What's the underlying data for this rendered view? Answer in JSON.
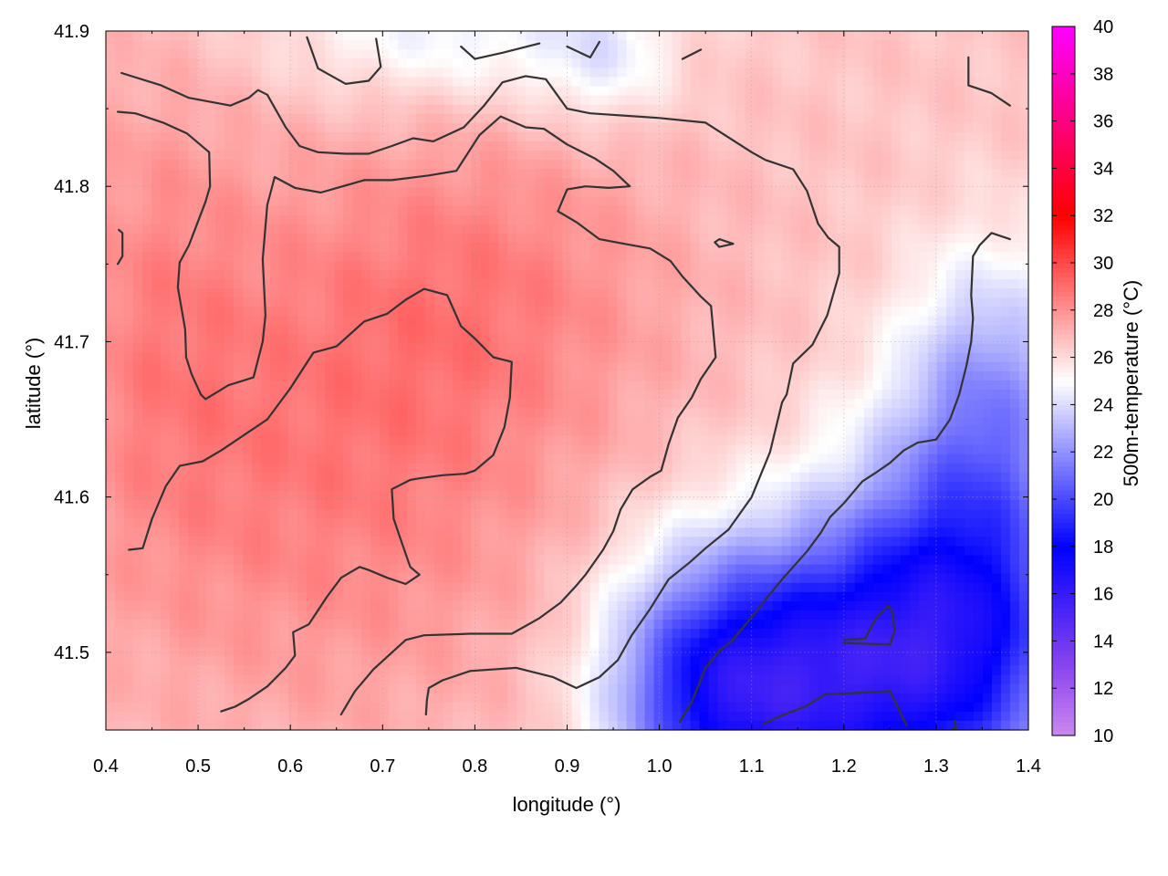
{
  "chart_data": {
    "type": "heatmap",
    "xlabel": "longitude (°)",
    "ylabel": "latitude (°)",
    "colorbar_label": "500m-temperature (°C)",
    "xlim": [
      0.4,
      1.4
    ],
    "ylim": [
      41.45,
      41.9
    ],
    "x_ticks": [
      "0.4",
      "0.5",
      "0.6",
      "0.7",
      "0.8",
      "0.9",
      "1.0",
      "1.1",
      "1.2",
      "1.3",
      "1.4"
    ],
    "x_tick_values": [
      0.4,
      0.5,
      0.6,
      0.7,
      0.8,
      0.9,
      1.0,
      1.1,
      1.2,
      1.3,
      1.4
    ],
    "y_ticks": [
      "41.5",
      "41.6",
      "41.7",
      "41.8",
      "41.9"
    ],
    "y_tick_values": [
      41.5,
      41.6,
      41.7,
      41.8,
      41.9
    ],
    "colorbar_range": [
      10,
      40
    ],
    "colorbar_ticks": [
      "10",
      "12",
      "14",
      "16",
      "18",
      "20",
      "22",
      "24",
      "26",
      "28",
      "30",
      "32",
      "34",
      "36",
      "38",
      "40"
    ],
    "colorbar_tick_values": [
      10,
      12,
      14,
      16,
      18,
      20,
      22,
      24,
      26,
      28,
      30,
      32,
      34,
      36,
      38,
      40
    ],
    "colormap": [
      {
        "v": 10,
        "color": "#cc88ee"
      },
      {
        "v": 13,
        "color": "#8844ee"
      },
      {
        "v": 18,
        "color": "#0000ff"
      },
      {
        "v": 25,
        "color": "#ffffff"
      },
      {
        "v": 32,
        "color": "#ff0000"
      },
      {
        "v": 40,
        "color": "#ff00ff"
      }
    ],
    "grid": true,
    "temperature_field": {
      "base_celsius": 26.6,
      "blobs": [
        {
          "lon": 0.65,
          "lat": 41.62,
          "sigma_lon": 0.18,
          "sigma_lat": 0.12,
          "amp_celsius": 1.9
        },
        {
          "lon": 0.82,
          "lat": 41.74,
          "sigma_lon": 0.15,
          "sigma_lat": 0.08,
          "amp_celsius": 1.4
        },
        {
          "lon": 0.45,
          "lat": 41.72,
          "sigma_lon": 0.08,
          "sigma_lat": 0.12,
          "amp_celsius": 1.2
        },
        {
          "lon": 1.24,
          "lat": 41.49,
          "sigma_lon": 0.13,
          "sigma_lat": 0.07,
          "amp_celsius": -7.5
        },
        {
          "lon": 1.34,
          "lat": 41.56,
          "sigma_lon": 0.09,
          "sigma_lat": 0.09,
          "amp_celsius": -5.0
        },
        {
          "lon": 1.1,
          "lat": 41.47,
          "sigma_lon": 0.09,
          "sigma_lat": 0.06,
          "amp_celsius": -4.8
        },
        {
          "lon": 1.36,
          "lat": 41.68,
          "sigma_lon": 0.06,
          "sigma_lat": 0.06,
          "amp_celsius": -2.6
        },
        {
          "lon": 0.78,
          "lat": 41.9,
          "sigma_lon": 0.14,
          "sigma_lat": 0.035,
          "amp_celsius": -2.2
        },
        {
          "lon": 0.94,
          "lat": 41.88,
          "sigma_lon": 0.05,
          "sigma_lat": 0.03,
          "amp_celsius": -1.6
        },
        {
          "lon": 1.03,
          "lat": 41.48,
          "sigma_lon": 0.07,
          "sigma_lat": 0.06,
          "amp_celsius": -3.0
        }
      ]
    },
    "contours": [
      [
        [
          0.417,
          41.873
        ],
        [
          0.46,
          41.865
        ],
        [
          0.49,
          41.857
        ],
        [
          0.535,
          41.852
        ],
        [
          0.555,
          41.857
        ],
        [
          0.565,
          41.862
        ],
        [
          0.575,
          41.859
        ],
        [
          0.595,
          41.838
        ],
        [
          0.61,
          41.826
        ],
        [
          0.63,
          41.822
        ],
        [
          0.66,
          41.821
        ],
        [
          0.685,
          41.821
        ],
        [
          0.71,
          41.826
        ],
        [
          0.733,
          41.831
        ],
        [
          0.755,
          41.829
        ],
        [
          0.788,
          41.838
        ],
        [
          0.81,
          41.852
        ],
        [
          0.83,
          41.867
        ],
        [
          0.855,
          41.871
        ],
        [
          0.877,
          41.869
        ],
        [
          0.9,
          41.85
        ],
        [
          0.925,
          41.847
        ],
        [
          1.0,
          41.844
        ],
        [
          1.05,
          41.841
        ],
        [
          1.1,
          41.822
        ],
        [
          1.115,
          41.817
        ],
        [
          1.145,
          41.811
        ],
        [
          1.16,
          41.797
        ],
        [
          1.172,
          41.776
        ],
        [
          1.183,
          41.767
        ],
        [
          1.195,
          41.761
        ],
        [
          1.195,
          41.744
        ],
        [
          1.182,
          41.717
        ],
        [
          1.166,
          41.698
        ],
        [
          1.145,
          41.686
        ],
        [
          1.138,
          41.666
        ],
        [
          1.133,
          41.661
        ],
        [
          1.12,
          41.629
        ],
        [
          1.1,
          41.6
        ],
        [
          1.075,
          41.579
        ],
        [
          1.05,
          41.567
        ],
        [
          1.033,
          41.558
        ],
        [
          1.01,
          41.547
        ],
        [
          0.99,
          41.528
        ],
        [
          0.97,
          41.511
        ],
        [
          0.955,
          41.495
        ],
        [
          0.935,
          41.484
        ],
        [
          0.91,
          41.477
        ],
        [
          0.885,
          41.484
        ],
        [
          0.845,
          41.49
        ],
        [
          0.795,
          41.488
        ],
        [
          0.765,
          41.482
        ],
        [
          0.75,
          41.477
        ],
        [
          0.748,
          41.469
        ],
        [
          0.747,
          41.46
        ]
      ],
      [
        [
          0.413,
          41.848
        ],
        [
          0.432,
          41.847
        ],
        [
          0.462,
          41.841
        ],
        [
          0.488,
          41.834
        ],
        [
          0.512,
          41.822
        ],
        [
          0.513,
          41.8
        ],
        [
          0.508,
          41.79
        ],
        [
          0.49,
          41.762
        ],
        [
          0.48,
          41.751
        ],
        [
          0.478,
          41.735
        ],
        [
          0.486,
          41.708
        ],
        [
          0.487,
          41.69
        ],
        [
          0.493,
          41.679
        ],
        [
          0.503,
          41.666
        ],
        [
          0.508,
          41.663
        ],
        [
          0.533,
          41.672
        ],
        [
          0.56,
          41.677
        ],
        [
          0.57,
          41.7
        ],
        [
          0.573,
          41.717
        ],
        [
          0.57,
          41.753
        ],
        [
          0.575,
          41.788
        ],
        [
          0.583,
          41.806
        ],
        [
          0.605,
          41.799
        ],
        [
          0.633,
          41.796
        ],
        [
          0.68,
          41.804
        ],
        [
          0.71,
          41.804
        ],
        [
          0.75,
          41.807
        ],
        [
          0.78,
          41.81
        ],
        [
          0.805,
          41.833
        ],
        [
          0.828,
          41.845
        ],
        [
          0.855,
          41.838
        ],
        [
          0.875,
          41.837
        ],
        [
          0.9,
          41.827
        ],
        [
          0.93,
          41.818
        ],
        [
          0.95,
          41.81
        ],
        [
          0.968,
          41.8
        ],
        [
          0.945,
          41.799
        ],
        [
          0.92,
          41.8
        ],
        [
          0.9,
          41.798
        ],
        [
          0.89,
          41.784
        ],
        [
          0.91,
          41.777
        ],
        [
          0.935,
          41.766
        ],
        [
          0.962,
          41.763
        ],
        [
          0.99,
          41.76
        ],
        [
          1.012,
          41.752
        ],
        [
          1.025,
          41.742
        ],
        [
          1.045,
          41.729
        ],
        [
          1.056,
          41.723
        ],
        [
          1.061,
          41.69
        ],
        [
          1.045,
          41.676
        ],
        [
          1.035,
          41.664
        ],
        [
          1.02,
          41.651
        ],
        [
          1.01,
          41.634
        ],
        [
          1.002,
          41.617
        ],
        [
          0.99,
          41.613
        ],
        [
          0.971,
          41.605
        ],
        [
          0.958,
          41.592
        ],
        [
          0.95,
          41.578
        ],
        [
          0.939,
          41.566
        ],
        [
          0.92,
          41.55
        ],
        [
          0.91,
          41.543
        ],
        [
          0.893,
          41.532
        ],
        [
          0.87,
          41.522
        ],
        [
          0.84,
          41.512
        ],
        [
          0.795,
          41.512
        ],
        [
          0.745,
          41.511
        ],
        [
          0.725,
          41.508
        ],
        [
          0.69,
          41.489
        ],
        [
          0.67,
          41.475
        ],
        [
          0.655,
          41.46
        ]
      ],
      [
        [
          0.425,
          41.566
        ],
        [
          0.44,
          41.567
        ],
        [
          0.45,
          41.586
        ],
        [
          0.465,
          41.607
        ],
        [
          0.48,
          41.62
        ],
        [
          0.505,
          41.623
        ],
        [
          0.525,
          41.63
        ],
        [
          0.55,
          41.64
        ],
        [
          0.575,
          41.65
        ],
        [
          0.6,
          41.67
        ],
        [
          0.625,
          41.693
        ],
        [
          0.65,
          41.697
        ],
        [
          0.68,
          41.713
        ],
        [
          0.705,
          41.718
        ],
        [
          0.725,
          41.727
        ],
        [
          0.745,
          41.734
        ],
        [
          0.77,
          41.73
        ],
        [
          0.785,
          41.71
        ],
        [
          0.8,
          41.702
        ],
        [
          0.82,
          41.69
        ],
        [
          0.84,
          41.687
        ],
        [
          0.838,
          41.664
        ],
        [
          0.832,
          41.645
        ],
        [
          0.82,
          41.627
        ],
        [
          0.8,
          41.617
        ],
        [
          0.79,
          41.615
        ],
        [
          0.765,
          41.614
        ],
        [
          0.74,
          41.612
        ],
        [
          0.73,
          41.611
        ],
        [
          0.71,
          41.605
        ],
        [
          0.712,
          41.586
        ],
        [
          0.72,
          41.572
        ],
        [
          0.73,
          41.555
        ],
        [
          0.74,
          41.55
        ],
        [
          0.725,
          41.544
        ],
        [
          0.705,
          41.548
        ],
        [
          0.685,
          41.553
        ],
        [
          0.675,
          41.555
        ],
        [
          0.655,
          41.548
        ],
        [
          0.64,
          41.536
        ],
        [
          0.63,
          41.527
        ],
        [
          0.62,
          41.518
        ],
        [
          0.603,
          41.513
        ],
        [
          0.605,
          41.498
        ],
        [
          0.595,
          41.49
        ],
        [
          0.575,
          41.478
        ],
        [
          0.555,
          41.47
        ],
        [
          0.54,
          41.465
        ],
        [
          0.525,
          41.462
        ]
      ],
      [
        [
          1.022,
          41.455
        ],
        [
          1.035,
          41.468
        ],
        [
          1.05,
          41.49
        ],
        [
          1.065,
          41.501
        ],
        [
          1.078,
          41.507
        ],
        [
          1.095,
          41.519
        ],
        [
          1.11,
          41.53
        ],
        [
          1.122,
          41.539
        ],
        [
          1.133,
          41.547
        ],
        [
          1.145,
          41.555
        ],
        [
          1.16,
          41.565
        ],
        [
          1.175,
          41.577
        ],
        [
          1.185,
          41.587
        ],
        [
          1.2,
          41.596
        ],
        [
          1.21,
          41.603
        ],
        [
          1.22,
          41.61
        ],
        [
          1.233,
          41.615
        ],
        [
          1.25,
          41.622
        ],
        [
          1.265,
          41.63
        ],
        [
          1.28,
          41.635
        ],
        [
          1.3,
          41.637
        ],
        [
          1.315,
          41.65
        ],
        [
          1.325,
          41.666
        ],
        [
          1.333,
          41.685
        ],
        [
          1.338,
          41.7
        ],
        [
          1.34,
          41.715
        ],
        [
          1.338,
          41.73
        ],
        [
          1.34,
          41.755
        ],
        [
          1.347,
          41.762
        ],
        [
          1.36,
          41.77
        ],
        [
          1.38,
          41.766
        ]
      ],
      [
        [
          1.113,
          41.454
        ],
        [
          1.135,
          41.46
        ],
        [
          1.158,
          41.465
        ],
        [
          1.18,
          41.473
        ],
        [
          1.22,
          41.474
        ],
        [
          1.25,
          41.475
        ],
        [
          1.268,
          41.453
        ]
      ],
      [
        [
          1.2,
          41.508
        ],
        [
          1.223,
          41.509
        ],
        [
          1.235,
          41.522
        ],
        [
          1.248,
          41.53
        ],
        [
          1.252,
          41.527
        ],
        [
          1.255,
          41.514
        ],
        [
          1.25,
          41.505
        ],
        [
          1.2,
          41.506
        ]
      ],
      [
        [
          1.06,
          41.764
        ],
        [
          1.065,
          41.766
        ],
        [
          1.08,
          41.763
        ],
        [
          1.065,
          41.761
        ],
        [
          1.06,
          41.764
        ]
      ],
      [
        [
          0.618,
          41.896
        ],
        [
          0.63,
          41.876
        ],
        [
          0.66,
          41.866
        ],
        [
          0.685,
          41.868
        ],
        [
          0.698,
          41.877
        ],
        [
          0.693,
          41.895
        ]
      ],
      [
        [
          0.785,
          41.89
        ],
        [
          0.8,
          41.882
        ],
        [
          0.83,
          41.886
        ],
        [
          0.87,
          41.892
        ]
      ],
      [
        [
          0.9,
          41.89
        ],
        [
          0.925,
          41.883
        ],
        [
          0.935,
          41.893
        ]
      ],
      [
        [
          1.025,
          41.882
        ],
        [
          1.045,
          41.888
        ]
      ],
      [
        [
          1.335,
          41.883
        ],
        [
          1.335,
          41.865
        ],
        [
          1.36,
          41.86
        ],
        [
          1.38,
          41.852
        ]
      ],
      [
        [
          0.414,
          41.772
        ],
        [
          0.418,
          41.77
        ],
        [
          0.418,
          41.755
        ],
        [
          0.413,
          41.75
        ]
      ],
      [
        [
          1.32,
          41.456
        ],
        [
          1.322,
          41.451
        ],
        [
          1.318,
          41.451
        ]
      ]
    ]
  }
}
